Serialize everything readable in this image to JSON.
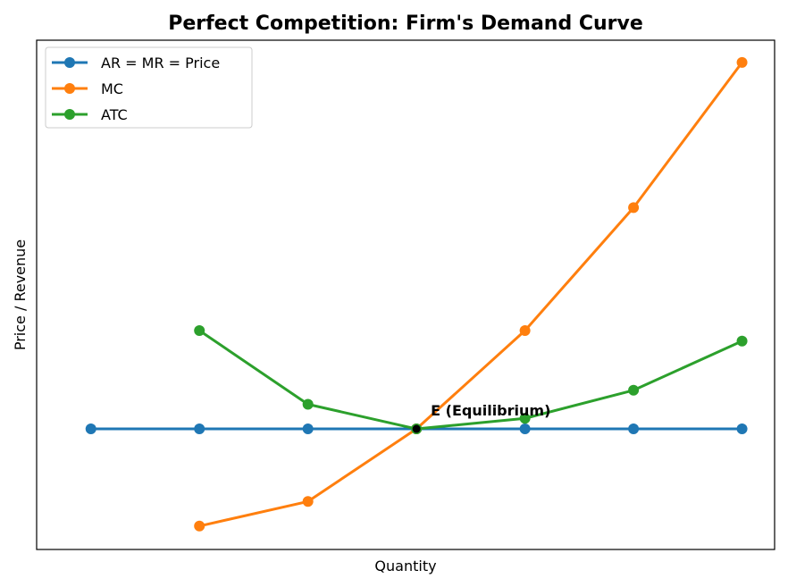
{
  "chart_data": {
    "type": "line",
    "title": "Perfect Competition: Firm's Demand Curve",
    "xlabel": "Quantity",
    "ylabel": "Price / Revenue",
    "x_ticks_visible": false,
    "y_ticks_visible": false,
    "grid": false,
    "legend_position": "upper-left",
    "xlim": [
      0.5,
      7.3
    ],
    "ylim": [
      0.4,
      4.75
    ],
    "series": [
      {
        "name": "AR = MR = Price",
        "color": "#1f77b4",
        "x": [
          1,
          2,
          3,
          4,
          5,
          6,
          7
        ],
        "y": [
          1.43,
          1.43,
          1.43,
          1.43,
          1.43,
          1.43,
          1.43
        ]
      },
      {
        "name": "MC",
        "color": "#ff7f0e",
        "x": [
          2,
          3,
          4,
          5,
          6,
          7
        ],
        "y": [
          0.6,
          0.81,
          1.43,
          2.27,
          3.32,
          4.56
        ]
      },
      {
        "name": "ATC",
        "color": "#2ca02c",
        "x": [
          2,
          3,
          4,
          5,
          6,
          7
        ],
        "y": [
          2.27,
          1.64,
          1.43,
          1.52,
          1.76,
          2.18
        ]
      }
    ],
    "annotations": [
      {
        "text": "E (Equilibrium)",
        "x": 4,
        "y": 1.43,
        "marker_color": "#000000"
      }
    ]
  }
}
